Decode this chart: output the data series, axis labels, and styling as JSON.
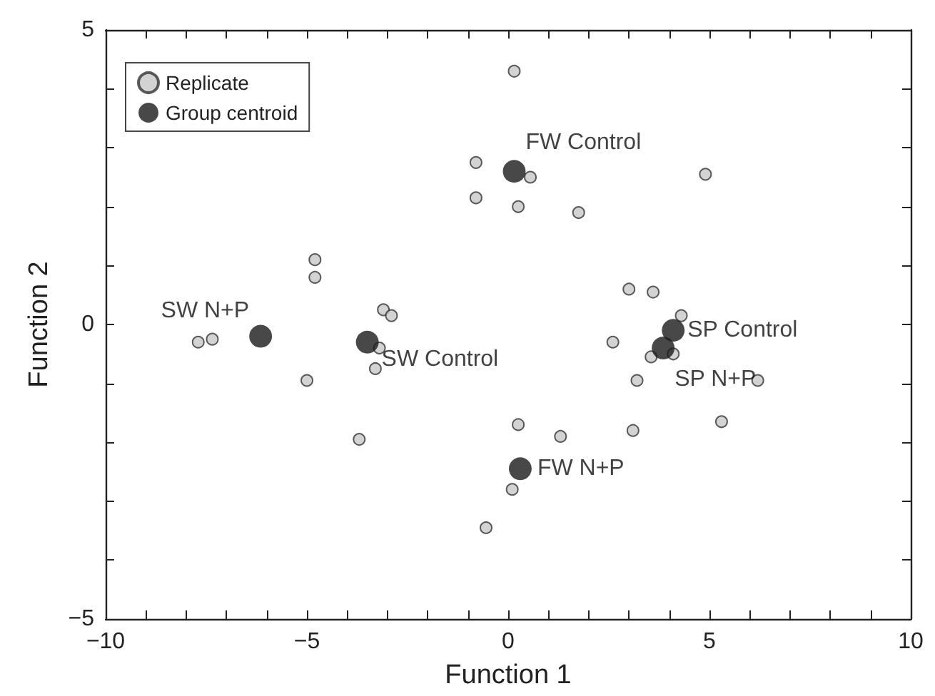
{
  "chart_data": {
    "type": "scatter",
    "xlabel": "Function 1",
    "ylabel": "Function 2",
    "xlim": [
      -10,
      10
    ],
    "ylim": [
      -5,
      5
    ],
    "xticks": [
      {
        "value": -10,
        "label": "−10"
      },
      {
        "value": -9,
        "label": null
      },
      {
        "value": -8,
        "label": null
      },
      {
        "value": -7,
        "label": null
      },
      {
        "value": -6,
        "label": null
      },
      {
        "value": -5,
        "label": "−5"
      },
      {
        "value": -4,
        "label": null
      },
      {
        "value": -3,
        "label": null
      },
      {
        "value": -2,
        "label": null
      },
      {
        "value": -1,
        "label": null
      },
      0,
      {
        "value": 1,
        "label": null
      },
      {
        "value": 2,
        "label": null
      },
      {
        "value": 3,
        "label": null
      },
      {
        "value": 4,
        "label": null
      },
      5,
      {
        "value": 6,
        "label": null
      },
      {
        "value": 7,
        "label": null
      },
      {
        "value": 8,
        "label": null
      },
      {
        "value": 9,
        "label": null
      },
      10
    ],
    "yticks": [
      {
        "value": -5,
        "label": "−5"
      },
      {
        "value": -4,
        "label": null
      },
      {
        "value": -3,
        "label": null
      },
      {
        "value": -2,
        "label": null
      },
      {
        "value": -1,
        "label": null
      },
      0,
      {
        "value": 1,
        "label": null
      },
      {
        "value": 2,
        "label": null
      },
      {
        "value": 3,
        "label": null
      },
      {
        "value": 4,
        "label": null
      },
      5
    ],
    "grid": false,
    "legend": "top left",
    "marker": "circle",
    "series": [
      {
        "name": "Replicate",
        "color": "#c8c8c8",
        "x": [
          0.15,
          -0.8,
          0.55,
          -0.8,
          0.25,
          1.75,
          4.9,
          -4.8,
          -4.8,
          -3.1,
          -2.9,
          -7.7,
          -7.35,
          -3.2,
          -3.3,
          -5.0,
          -3.7,
          0.25,
          0.1,
          -0.55,
          3.0,
          3.6,
          4.3,
          2.6,
          3.55,
          4.1,
          3.2,
          6.2,
          1.3,
          3.1,
          5.3
        ],
        "values": [
          4.3,
          2.75,
          2.5,
          2.15,
          2.0,
          1.9,
          2.55,
          1.1,
          0.8,
          0.25,
          0.15,
          -0.3,
          -0.25,
          -0.4,
          -0.75,
          -0.95,
          -1.95,
          -1.7,
          -2.8,
          -3.45,
          0.6,
          0.55,
          0.15,
          -0.3,
          -0.55,
          -0.5,
          -0.95,
          -0.95,
          -1.9,
          -1.8,
          -1.65
        ]
      },
      {
        "name": "Group centroid",
        "color": "#1a1a1a",
        "x": [
          0.15,
          -6.15,
          -3.5,
          4.1,
          3.85,
          0.3
        ],
        "values": [
          2.6,
          -0.2,
          -0.3,
          -0.1,
          -0.4,
          -2.45
        ]
      }
    ],
    "annotations": [
      {
        "text": "FW Control",
        "x": 0.15,
        "y": 2.6
      },
      {
        "text": "SW N+P",
        "x": -6.15,
        "y": -0.2
      },
      {
        "text": "SW Control",
        "x": -3.5,
        "y": -0.3
      },
      {
        "text": "SP Control",
        "x": 4.1,
        "y": -0.1
      },
      {
        "text": "SP N+P",
        "x": 3.85,
        "y": -0.4
      },
      {
        "text": "FW N+P",
        "x": 0.3,
        "y": -2.45
      }
    ]
  }
}
